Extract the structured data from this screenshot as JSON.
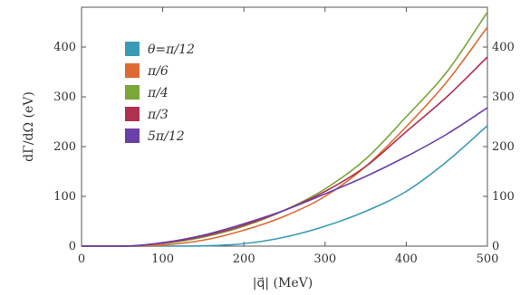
{
  "chart_data": {
    "type": "line",
    "xlabel": "|q⃗| (MeV)",
    "ylabel": "dΓ/dΩ (eV)",
    "xlim": [
      0,
      500
    ],
    "ylim": [
      0,
      480
    ],
    "x_ticks": [
      0,
      100,
      200,
      300,
      400,
      500
    ],
    "y_ticks": [
      0,
      100,
      200,
      300,
      400
    ],
    "grid": false,
    "legend_position": "upper-left",
    "series": [
      {
        "name": "θ=π/12",
        "color": "#3a9bb5",
        "x": [
          0,
          100,
          150,
          200,
          250,
          300,
          350,
          400,
          450,
          500
        ],
        "y": [
          0,
          0,
          0.5,
          5,
          18,
          40,
          70,
          110,
          170,
          242
        ]
      },
      {
        "name": "π/6",
        "color": "#dd6a33",
        "x": [
          0,
          60,
          100,
          150,
          200,
          250,
          300,
          350,
          400,
          450,
          500
        ],
        "y": [
          0,
          0,
          2,
          12,
          32,
          60,
          100,
          160,
          240,
          330,
          440
        ]
      },
      {
        "name": "π/4",
        "color": "#7aa63a",
        "x": [
          0,
          50,
          100,
          150,
          200,
          250,
          300,
          350,
          400,
          450,
          500
        ],
        "y": [
          0,
          0,
          5,
          18,
          40,
          72,
          115,
          175,
          260,
          350,
          470
        ]
      },
      {
        "name": "π/3",
        "color": "#b0304f",
        "x": [
          0,
          50,
          100,
          150,
          200,
          250,
          300,
          350,
          400,
          450,
          500
        ],
        "y": [
          0,
          0,
          6,
          20,
          42,
          72,
          110,
          160,
          230,
          300,
          380
        ]
      },
      {
        "name": "5π/12",
        "color": "#6b3fa8",
        "x": [
          0,
          50,
          100,
          150,
          200,
          250,
          300,
          350,
          400,
          450,
          500
        ],
        "y": [
          0,
          0,
          7,
          22,
          45,
          72,
          105,
          140,
          180,
          225,
          278
        ]
      }
    ]
  }
}
